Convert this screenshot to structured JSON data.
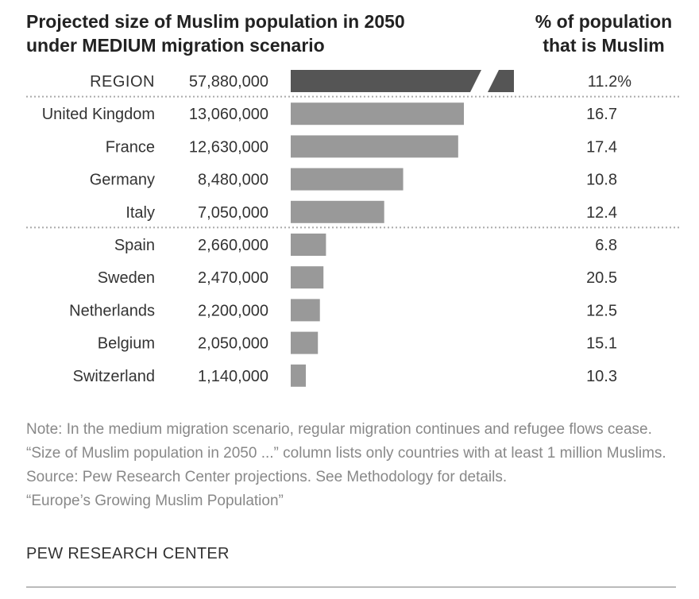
{
  "header": {
    "title_line1": "Projected size of Muslim population in 2050",
    "title_line2": "under MEDIUM migration scenario",
    "pct_header_line1": "% of population",
    "pct_header_line2": "that is Muslim"
  },
  "chart_data": {
    "type": "bar",
    "orientation": "horizontal",
    "title": "Projected size of Muslim population in 2050 under MEDIUM migration scenario",
    "value_column_label": "Size of Muslim population in 2050",
    "pct_column_label": "% of population that is Muslim",
    "categories": [
      "REGION",
      "United Kingdom",
      "France",
      "Germany",
      "Italy",
      "Spain",
      "Sweden",
      "Netherlands",
      "Belgium",
      "Switzerland"
    ],
    "values": [
      57880000,
      13060000,
      12630000,
      8480000,
      7050000,
      2660000,
      2470000,
      2200000,
      2050000,
      1140000
    ],
    "value_labels": [
      "57,880,000",
      "13,060,000",
      "12,630,000",
      "8,480,000",
      "7,050,000",
      "2,660,000",
      "2,470,000",
      "2,200,000",
      "2,050,000",
      "1,140,000"
    ],
    "percent_values": [
      11.2,
      16.7,
      17.4,
      10.8,
      12.4,
      6.8,
      20.5,
      12.5,
      15.1,
      10.3
    ],
    "percent_labels": [
      "11.2%",
      "16.7",
      "17.4",
      "10.8",
      "12.4",
      "6.8",
      "20.5",
      "12.5",
      "15.1",
      "10.3"
    ],
    "truncated_categories": [
      "REGION"
    ],
    "highlighted_categories": [
      "REGION"
    ],
    "separators_after": [
      "REGION",
      "Italy"
    ],
    "xlim": [
      0,
      13060000
    ],
    "colors": {
      "bar": "#999999",
      "region_bar": "#555555",
      "separator": "#aaaaaa"
    }
  },
  "notes": {
    "note": "Note: In the medium migration scenario, regular migration continues and refugee flows cease. “Size of Muslim population in 2050 ...” column lists only countries with at least 1 million Muslims.",
    "source": "Source: Pew Research Center projections. See Methodology for details.",
    "report": "“Europe’s Growing Muslim Population”",
    "organization": "PEW RESEARCH CENTER"
  }
}
